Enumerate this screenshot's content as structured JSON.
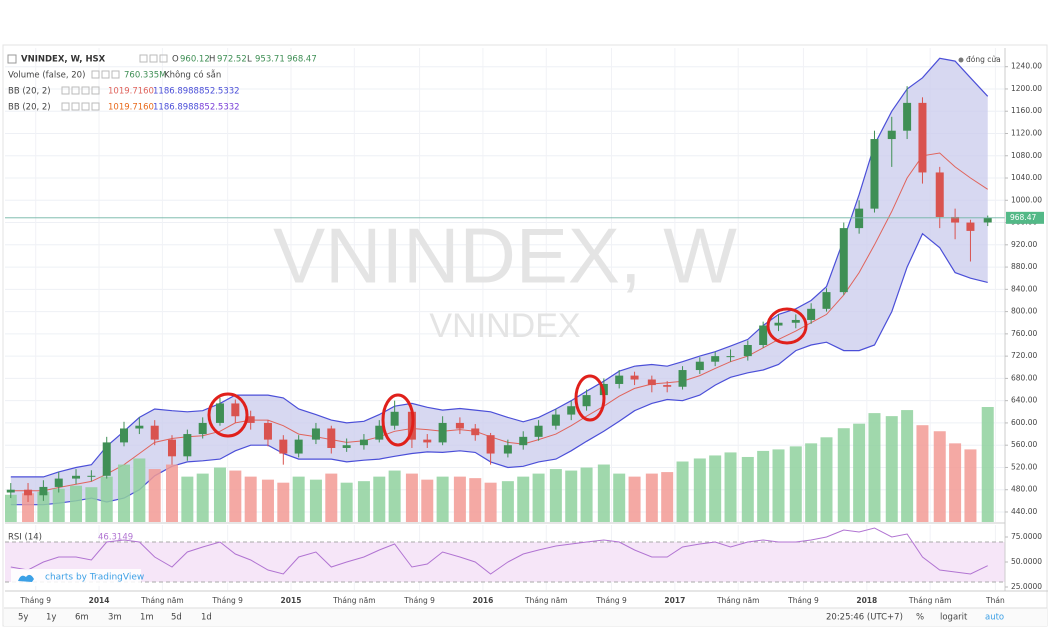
{
  "header": {
    "symbol": "VNINDEX, W, HSX",
    "o_label": "O",
    "h_label": "H",
    "l_label": "L",
    "close_legend": "đóng cửa",
    "watermark": "VNINDEX, W",
    "watermark_sub": "VNINDEX"
  },
  "legend": [
    {
      "name": "Volume (false, 20)",
      "value_text": "760.335M",
      "note": "Không có sẵn"
    },
    {
      "name": "BB (20, 2)",
      "value_texts": [
        "1019.7160",
        "1186.8988",
        "852.5332"
      ]
    },
    {
      "name": "BB (20, 2)",
      "value_texts": [
        "1019.7160",
        "1186.8988",
        "852.5332"
      ]
    }
  ],
  "rsi_legend": "RSI (14)",
  "branding": "charts by TradingView",
  "toolbar": {
    "ranges": [
      "5y",
      "1y",
      "6m",
      "3m",
      "1m",
      "5d",
      "1d"
    ],
    "time": "20:25:46 (UTC+7)",
    "percent": "%",
    "log": "logarit",
    "auto": "auto"
  },
  "chart_data": {
    "type": "candlestick",
    "x": [
      2013.54,
      2013.63,
      2013.71,
      2013.79,
      2013.88,
      2013.96,
      2014.04,
      2014.13,
      2014.21,
      2014.29,
      2014.38,
      2014.46,
      2014.54,
      2014.63,
      2014.71,
      2014.79,
      2014.88,
      2014.96,
      2015.04,
      2015.13,
      2015.21,
      2015.29,
      2015.38,
      2015.46,
      2015.54,
      2015.63,
      2015.71,
      2015.79,
      2015.88,
      2015.96,
      2016.04,
      2016.13,
      2016.21,
      2016.29,
      2016.38,
      2016.46,
      2016.54,
      2016.63,
      2016.71,
      2016.79,
      2016.88,
      2016.96,
      2017.04,
      2017.13,
      2017.21,
      2017.29,
      2017.38,
      2017.46,
      2017.54,
      2017.63,
      2017.71,
      2017.79,
      2017.88,
      2017.96,
      2018.04,
      2018.13,
      2018.21,
      2018.29,
      2018.38,
      2018.46,
      2018.54,
      2018.63
    ],
    "open": [
      475,
      480,
      470,
      485,
      500,
      505,
      505,
      565,
      590,
      595,
      570,
      540,
      580,
      600,
      635,
      612,
      600,
      570,
      545,
      570,
      590,
      555,
      560,
      570,
      595,
      620,
      570,
      565,
      600,
      590,
      578,
      545,
      560,
      575,
      595,
      615,
      630,
      650,
      670,
      685,
      678,
      668,
      665,
      695,
      710,
      720,
      720,
      740,
      775,
      780,
      785,
      805,
      835,
      950,
      985,
      1110,
      1125,
      1175,
      1050,
      970,
      960,
      960.12
    ],
    "high": [
      492,
      492,
      497,
      512,
      517,
      515,
      575,
      602,
      610,
      605,
      578,
      588,
      610,
      645,
      642,
      622,
      605,
      578,
      578,
      600,
      595,
      572,
      580,
      605,
      640,
      625,
      580,
      612,
      610,
      598,
      582,
      570,
      585,
      605,
      625,
      640,
      660,
      680,
      695,
      692,
      685,
      675,
      702,
      718,
      728,
      732,
      748,
      782,
      795,
      795,
      815,
      842,
      960,
      1000,
      1125,
      1150,
      1205,
      1185,
      1060,
      985,
      965,
      972.52
    ],
    "low": [
      465,
      458,
      460,
      475,
      490,
      495,
      500,
      558,
      580,
      560,
      525,
      532,
      572,
      595,
      600,
      588,
      558,
      525,
      538,
      562,
      545,
      548,
      552,
      565,
      588,
      555,
      555,
      560,
      580,
      568,
      525,
      538,
      552,
      568,
      588,
      605,
      622,
      642,
      662,
      668,
      655,
      655,
      660,
      688,
      702,
      710,
      712,
      735,
      765,
      770,
      778,
      800,
      830,
      940,
      978,
      1060,
      1110,
      1030,
      950,
      930,
      890,
      953.71
    ],
    "close": [
      480,
      470,
      485,
      500,
      505,
      505,
      565,
      590,
      595,
      570,
      540,
      580,
      600,
      635,
      612,
      600,
      570,
      545,
      570,
      590,
      555,
      560,
      570,
      595,
      620,
      570,
      565,
      600,
      590,
      578,
      545,
      560,
      575,
      595,
      615,
      630,
      650,
      670,
      685,
      678,
      668,
      665,
      695,
      710,
      720,
      720,
      740,
      775,
      780,
      785,
      805,
      835,
      950,
      985,
      1110,
      1125,
      1175,
      1050,
      970,
      960,
      945,
      968.47
    ],
    "volume": [
      180,
      190,
      200,
      220,
      240,
      230,
      300,
      380,
      420,
      350,
      380,
      300,
      320,
      360,
      340,
      300,
      280,
      260,
      300,
      280,
      320,
      260,
      270,
      300,
      340,
      320,
      280,
      300,
      300,
      290,
      260,
      270,
      300,
      320,
      350,
      340,
      360,
      380,
      320,
      300,
      320,
      330,
      400,
      420,
      440,
      460,
      430,
      470,
      480,
      500,
      520,
      560,
      620,
      650,
      720,
      700,
      740,
      640,
      600,
      520,
      480,
      760.335
    ],
    "bb_upper": [
      503,
      503,
      503,
      512,
      520,
      525,
      558,
      585,
      610,
      625,
      622,
      620,
      622,
      635,
      650,
      650,
      650,
      645,
      625,
      615,
      605,
      600,
      603,
      615,
      630,
      635,
      628,
      623,
      626,
      623,
      620,
      610,
      602,
      610,
      625,
      640,
      657,
      675,
      693,
      702,
      705,
      702,
      710,
      720,
      728,
      738,
      750,
      775,
      795,
      805,
      820,
      845,
      930,
      1010,
      1100,
      1160,
      1200,
      1220,
      1255,
      1250,
      1220,
      1186.8988
    ],
    "bb_middle": [
      478,
      478,
      478,
      484,
      490,
      495,
      508,
      525,
      545,
      565,
      572,
      575,
      577,
      585,
      600,
      605,
      605,
      595,
      580,
      575,
      570,
      565,
      568,
      575,
      585,
      590,
      588,
      585,
      588,
      585,
      575,
      565,
      562,
      570,
      580,
      595,
      612,
      630,
      648,
      662,
      670,
      672,
      675,
      685,
      698,
      710,
      720,
      735,
      750,
      765,
      780,
      795,
      830,
      870,
      920,
      980,
      1040,
      1080,
      1085,
      1060,
      1040,
      1019.716
    ],
    "bb_lower": [
      453,
      453,
      453,
      456,
      460,
      465,
      458,
      465,
      480,
      505,
      522,
      530,
      532,
      535,
      550,
      560,
      560,
      545,
      535,
      535,
      535,
      530,
      533,
      535,
      540,
      545,
      548,
      547,
      550,
      547,
      530,
      520,
      522,
      530,
      535,
      550,
      567,
      585,
      603,
      622,
      635,
      642,
      640,
      650,
      668,
      682,
      690,
      695,
      705,
      730,
      740,
      745,
      730,
      730,
      740,
      800,
      880,
      940,
      915,
      870,
      860,
      852.5332
    ],
    "rsi": [
      45,
      42,
      50,
      55,
      55,
      52,
      70,
      72,
      70,
      55,
      45,
      60,
      65,
      70,
      58,
      52,
      42,
      38,
      55,
      60,
      45,
      50,
      55,
      62,
      68,
      45,
      48,
      60,
      55,
      50,
      38,
      50,
      58,
      62,
      66,
      68,
      70,
      72,
      70,
      62,
      55,
      55,
      65,
      68,
      70,
      65,
      70,
      72,
      70,
      70,
      72,
      75,
      82,
      80,
      84,
      75,
      78,
      55,
      42,
      40,
      38,
      46.3149
    ],
    "up_color": "#3f8f55",
    "down_color": "#d9534f",
    "volume_up_color": "#8fd19e",
    "volume_down_color": "#f29a94",
    "bb_color": "#4b4fd8",
    "bb_fill": "#c9cbec",
    "bb_middle_color": "#e0645c",
    "rsi_color": "#b174d2",
    "rsi_fill": "#f6e6f8",
    "xlim": [
      2013.51,
      2018.72
    ],
    "xticks": [
      {
        "value": 2013.67,
        "label": "Tháng 9"
      },
      2014,
      {
        "value": 2014.33,
        "label": "Tháng năm"
      },
      {
        "value": 2014.67,
        "label": "Tháng 9"
      },
      2015,
      {
        "value": 2015.33,
        "label": "Tháng năm"
      },
      {
        "value": 2015.67,
        "label": "Tháng 9"
      },
      2016,
      {
        "value": 2016.33,
        "label": "Tháng năm"
      },
      {
        "value": 2016.67,
        "label": "Tháng 9"
      },
      2017,
      {
        "value": 2017.33,
        "label": "Tháng năm"
      },
      {
        "value": 2017.67,
        "label": "Tháng 9"
      },
      2018,
      {
        "value": 2018.33,
        "label": "Tháng năm"
      },
      {
        "value": 2018.67,
        "label": "Thán"
      }
    ],
    "ylim": [
      422,
      1270
    ],
    "yticks": [
      {
        "value": 440,
        "label": "440.00"
      },
      {
        "value": 480,
        "label": "480.00"
      },
      {
        "value": 520,
        "label": "520.00"
      },
      {
        "value": 560,
        "label": "560.00"
      },
      {
        "value": 600,
        "label": "600.00"
      },
      {
        "value": 640,
        "label": "640.00"
      },
      {
        "value": 680,
        "label": "680.00"
      },
      {
        "value": 720,
        "label": "720.00"
      },
      {
        "value": 760,
        "label": "760.00"
      },
      {
        "value": 800,
        "label": "800.00"
      },
      {
        "value": 840,
        "label": "840.00"
      },
      {
        "value": 880,
        "label": "880.00"
      },
      {
        "value": 920,
        "label": "920.00"
      },
      {
        "value": 960,
        "label": "960.00"
      },
      {
        "value": 1000,
        "label": "1000.00"
      },
      {
        "value": 1040,
        "label": "1040.00"
      },
      {
        "value": 1080,
        "label": "1080.00"
      },
      {
        "value": 1120,
        "label": "1120.00"
      },
      {
        "value": 1160,
        "label": "1160.00"
      },
      {
        "value": 1200,
        "label": "1200.00"
      },
      {
        "value": 1240,
        "label": "1240.00"
      }
    ],
    "rsi_ylim": [
      22,
      87
    ],
    "rsi_yticks": [
      {
        "value": 25,
        "label": "25.0000"
      },
      {
        "value": 50,
        "label": "50.0000"
      },
      {
        "value": 75,
        "label": "75.0000"
      }
    ],
    "rsi_bands": [
      30,
      70
    ],
    "grid": true
  }
}
